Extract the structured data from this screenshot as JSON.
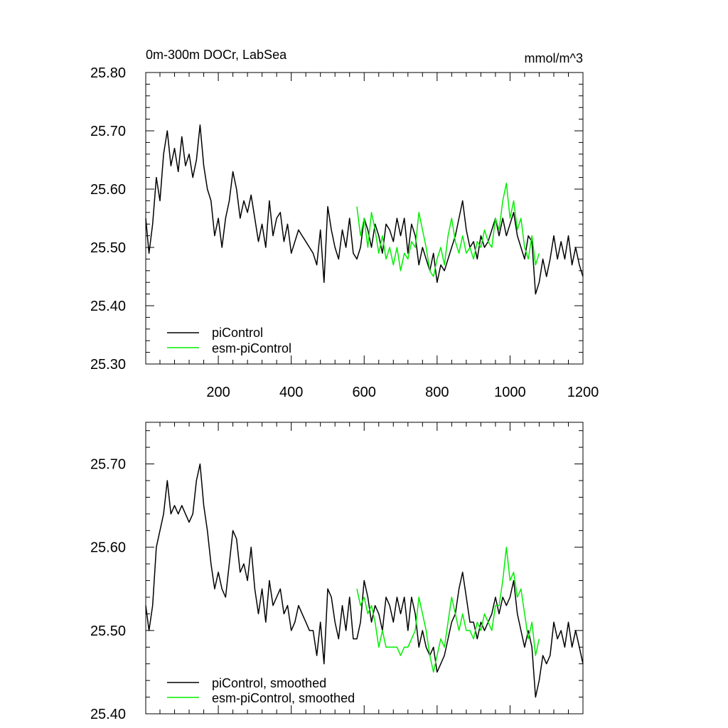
{
  "colors": {
    "picontrol": "#000000",
    "esm_picontrol": "#00ee00"
  },
  "chart_data": [
    {
      "type": "line",
      "title_left": "0m-300m DOCr, LabSea",
      "title_right": "mmol/m^3",
      "xlim": [
        1,
        1200
      ],
      "ylim": [
        25.3,
        25.8
      ],
      "yticks": [
        "25.30",
        "25.40",
        "25.50",
        "25.60",
        "25.70",
        "25.80"
      ],
      "xticks": [
        "200",
        "400",
        "600",
        "800",
        "1000",
        "1200"
      ],
      "grid": false,
      "legend_position": "bottom-left",
      "series": [
        {
          "name": "piControl",
          "x": [
            1,
            10,
            20,
            30,
            40,
            50,
            60,
            70,
            80,
            90,
            100,
            110,
            120,
            130,
            140,
            150,
            160,
            170,
            180,
            190,
            200,
            210,
            220,
            230,
            240,
            250,
            260,
            270,
            280,
            290,
            300,
            310,
            320,
            330,
            340,
            350,
            360,
            370,
            380,
            390,
            400,
            410,
            420,
            430,
            440,
            450,
            460,
            470,
            480,
            490,
            500,
            510,
            520,
            530,
            540,
            550,
            560,
            570,
            580,
            590,
            600,
            610,
            620,
            630,
            640,
            650,
            660,
            670,
            680,
            690,
            700,
            710,
            720,
            730,
            740,
            750,
            760,
            770,
            780,
            790,
            800,
            810,
            820,
            830,
            840,
            850,
            860,
            870,
            880,
            890,
            900,
            910,
            920,
            930,
            940,
            950,
            960,
            970,
            980,
            990,
            1000,
            1010,
            1020,
            1030,
            1040,
            1050,
            1060,
            1070,
            1080,
            1090,
            1100,
            1110,
            1120,
            1130,
            1140,
            1150,
            1160,
            1170,
            1180,
            1190,
            1200
          ],
          "y": [
            25.55,
            25.49,
            25.54,
            25.62,
            25.58,
            25.66,
            25.7,
            25.64,
            25.67,
            25.63,
            25.69,
            25.64,
            25.66,
            25.62,
            25.65,
            25.71,
            25.64,
            25.6,
            25.58,
            25.52,
            25.55,
            25.5,
            25.55,
            25.58,
            25.63,
            25.6,
            25.55,
            25.58,
            25.56,
            25.59,
            25.55,
            25.51,
            25.54,
            25.5,
            25.58,
            25.52,
            25.55,
            25.56,
            25.51,
            25.54,
            25.49,
            25.51,
            25.53,
            25.52,
            25.51,
            25.5,
            25.49,
            25.47,
            25.53,
            25.44,
            25.57,
            25.53,
            25.5,
            25.48,
            25.53,
            25.5,
            25.55,
            25.49,
            25.48,
            25.5,
            25.55,
            25.53,
            25.5,
            25.54,
            25.52,
            25.49,
            25.54,
            25.53,
            25.51,
            25.55,
            25.52,
            25.55,
            25.49,
            25.54,
            25.52,
            25.47,
            25.5,
            25.48,
            25.46,
            25.49,
            25.44,
            25.47,
            25.46,
            25.48,
            25.5,
            25.52,
            25.55,
            25.58,
            25.53,
            25.5,
            25.51,
            25.48,
            25.52,
            25.5,
            25.51,
            25.53,
            25.55,
            25.52,
            25.55,
            25.52,
            25.54,
            25.56,
            25.52,
            25.5,
            25.48,
            25.52,
            25.51,
            25.42,
            25.44,
            25.48,
            25.45,
            25.48,
            25.52,
            25.48,
            25.51,
            25.48,
            25.52,
            25.47,
            25.5,
            25.47,
            25.45
          ]
        },
        {
          "name": "esm-piControl",
          "x": [
            580,
            590,
            600,
            610,
            620,
            630,
            640,
            650,
            660,
            670,
            680,
            690,
            700,
            710,
            720,
            730,
            740,
            750,
            760,
            770,
            780,
            790,
            800,
            810,
            820,
            830,
            840,
            850,
            860,
            870,
            880,
            890,
            900,
            910,
            920,
            930,
            940,
            950,
            960,
            970,
            980,
            990,
            1000,
            1010,
            1020,
            1030,
            1040,
            1050,
            1060,
            1070,
            1080
          ],
          "y": [
            25.57,
            25.52,
            25.55,
            25.5,
            25.56,
            25.53,
            25.49,
            25.52,
            25.48,
            25.5,
            25.47,
            25.5,
            25.46,
            25.49,
            25.48,
            25.51,
            25.5,
            25.56,
            25.53,
            25.5,
            25.46,
            25.45,
            25.48,
            25.5,
            25.47,
            25.52,
            25.55,
            25.51,
            25.49,
            25.52,
            25.49,
            25.5,
            25.48,
            25.51,
            25.5,
            25.53,
            25.51,
            25.5,
            25.55,
            25.53,
            25.58,
            25.61,
            25.55,
            25.58,
            25.53,
            25.55,
            25.5,
            25.48,
            25.52,
            25.47,
            25.49
          ]
        }
      ]
    },
    {
      "type": "line",
      "xlim": [
        1,
        1200
      ],
      "ylim": [
        25.4,
        25.75
      ],
      "yticks": [
        "25.40",
        "25.50",
        "25.60",
        "25.70"
      ],
      "grid": false,
      "legend_position": "bottom-left",
      "series": [
        {
          "name": "piControl, smoothed",
          "x": [
            1,
            10,
            20,
            30,
            40,
            50,
            60,
            70,
            80,
            90,
            100,
            110,
            120,
            130,
            140,
            150,
            160,
            170,
            180,
            190,
            200,
            210,
            220,
            230,
            240,
            250,
            260,
            270,
            280,
            290,
            300,
            310,
            320,
            330,
            340,
            350,
            360,
            370,
            380,
            390,
            400,
            410,
            420,
            430,
            440,
            450,
            460,
            470,
            480,
            490,
            500,
            510,
            520,
            530,
            540,
            550,
            560,
            570,
            580,
            590,
            600,
            610,
            620,
            630,
            640,
            650,
            660,
            670,
            680,
            690,
            700,
            710,
            720,
            730,
            740,
            750,
            760,
            770,
            780,
            790,
            800,
            810,
            820,
            830,
            840,
            850,
            860,
            870,
            880,
            890,
            900,
            910,
            920,
            930,
            940,
            950,
            960,
            970,
            980,
            990,
            1000,
            1010,
            1020,
            1030,
            1040,
            1050,
            1060,
            1070,
            1080,
            1090,
            1100,
            1110,
            1120,
            1130,
            1140,
            1150,
            1160,
            1170,
            1180,
            1190,
            1200
          ],
          "y": [
            25.53,
            25.5,
            25.53,
            25.6,
            25.62,
            25.64,
            25.68,
            25.64,
            25.65,
            25.64,
            25.65,
            25.64,
            25.63,
            25.64,
            25.68,
            25.7,
            25.65,
            25.62,
            25.58,
            25.55,
            25.57,
            25.55,
            25.54,
            25.58,
            25.62,
            25.61,
            25.57,
            25.58,
            25.56,
            25.6,
            25.55,
            25.52,
            25.55,
            25.51,
            25.56,
            25.53,
            25.54,
            25.55,
            25.52,
            25.53,
            25.5,
            25.51,
            25.53,
            25.52,
            25.51,
            25.5,
            25.5,
            25.47,
            25.51,
            25.46,
            25.55,
            25.54,
            25.51,
            25.49,
            25.53,
            25.5,
            25.54,
            25.49,
            25.49,
            25.51,
            25.56,
            25.54,
            25.51,
            25.53,
            25.52,
            25.5,
            25.54,
            25.53,
            25.51,
            25.54,
            25.52,
            25.54,
            25.5,
            25.54,
            25.52,
            25.48,
            25.5,
            25.48,
            25.47,
            25.48,
            25.45,
            25.46,
            25.47,
            25.49,
            25.51,
            25.52,
            25.55,
            25.57,
            25.54,
            25.51,
            25.51,
            25.49,
            25.51,
            25.5,
            25.51,
            25.52,
            25.54,
            25.52,
            25.54,
            25.53,
            25.54,
            25.56,
            25.52,
            25.5,
            25.48,
            25.5,
            25.48,
            25.42,
            25.44,
            25.47,
            25.46,
            25.47,
            25.51,
            25.49,
            25.5,
            25.48,
            25.51,
            25.48,
            25.5,
            25.48,
            25.46
          ]
        },
        {
          "name": "esm-piControl, smoothed",
          "x": [
            580,
            590,
            600,
            610,
            620,
            630,
            640,
            650,
            660,
            670,
            680,
            690,
            700,
            710,
            720,
            730,
            740,
            750,
            760,
            770,
            780,
            790,
            800,
            810,
            820,
            830,
            840,
            850,
            860,
            870,
            880,
            890,
            900,
            910,
            920,
            930,
            940,
            950,
            960,
            970,
            980,
            990,
            1000,
            1010,
            1020,
            1030,
            1040,
            1050,
            1060,
            1070,
            1080
          ],
          "y": [
            25.55,
            25.53,
            25.54,
            25.52,
            25.53,
            25.51,
            25.48,
            25.5,
            25.48,
            25.48,
            25.48,
            25.48,
            25.47,
            25.48,
            25.48,
            25.49,
            25.5,
            25.54,
            25.52,
            25.5,
            25.47,
            25.45,
            25.47,
            25.49,
            25.48,
            25.51,
            25.54,
            25.52,
            25.5,
            25.52,
            25.5,
            25.5,
            25.49,
            25.51,
            25.5,
            25.52,
            25.51,
            25.5,
            25.53,
            25.53,
            25.56,
            25.6,
            25.56,
            25.57,
            25.54,
            25.55,
            25.52,
            25.49,
            25.51,
            25.47,
            25.49
          ]
        }
      ]
    }
  ]
}
